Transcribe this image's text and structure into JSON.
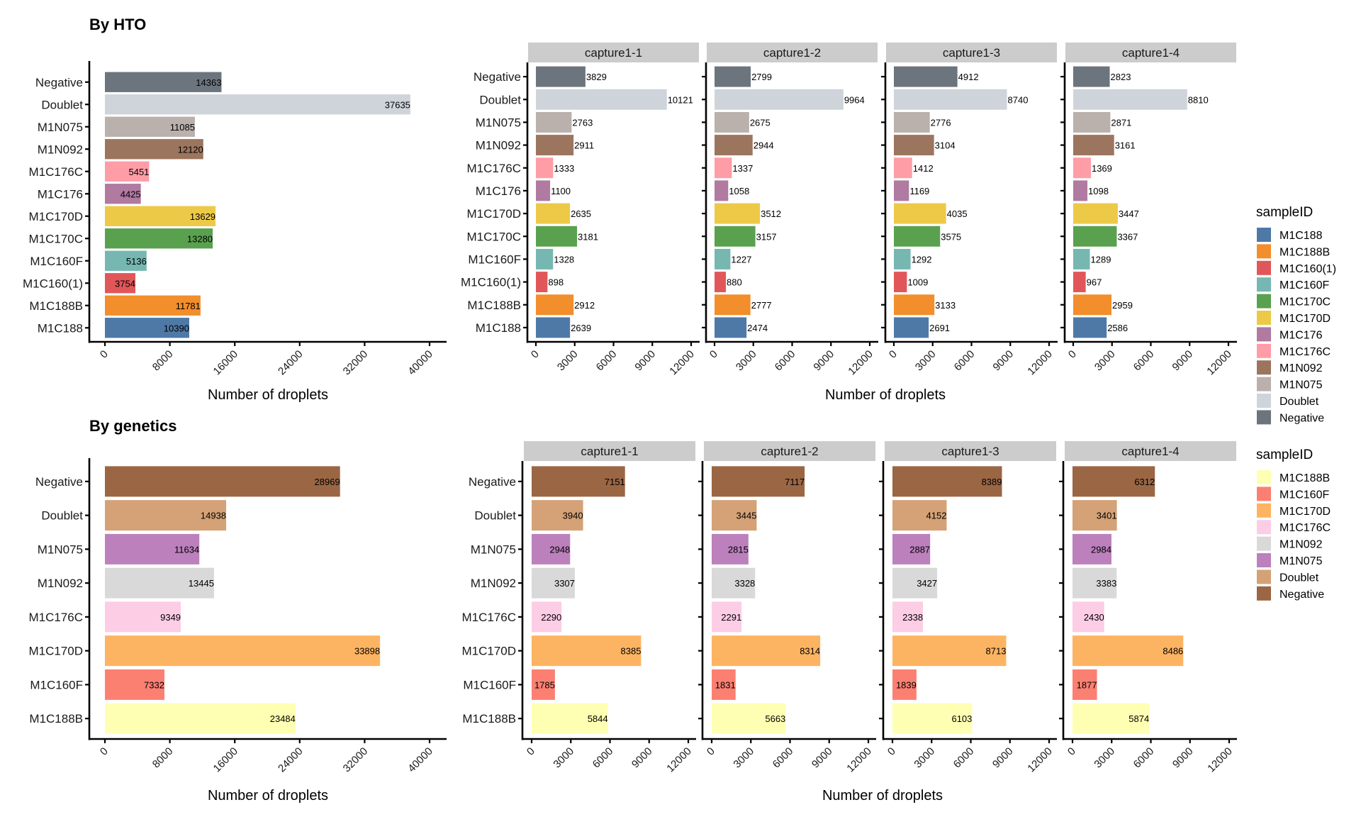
{
  "chart_data": [
    {
      "id": "hto_total",
      "type": "bar",
      "orientation": "horizontal",
      "section_title": "By HTO",
      "xlabel": "Number of droplets",
      "ylabel": "",
      "xlim": [
        0,
        40000
      ],
      "xticks": [
        0,
        8000,
        16000,
        24000,
        32000,
        40000
      ],
      "xtick_labels": [
        "0",
        "8000",
        "16000",
        "24000",
        "32000",
        "40000"
      ],
      "categories": [
        "Negative",
        "Doublet",
        "M1N075",
        "M1N092",
        "M1C176C",
        "M1C176",
        "M1C170D",
        "M1C170C",
        "M1C160F",
        "M1C160(1)",
        "M1C188B",
        "M1C188"
      ],
      "values": [
        14363,
        37635,
        11085,
        12120,
        5451,
        4425,
        13629,
        13280,
        5136,
        3754,
        11781,
        10390
      ],
      "label_position": "inside-end",
      "grid": false
    },
    {
      "id": "hto_by_capture",
      "type": "bar",
      "orientation": "horizontal",
      "faceted": true,
      "xlabel": "Number of droplets",
      "xlim": [
        0,
        12000
      ],
      "xticks": [
        0,
        3000,
        6000,
        9000,
        12000
      ],
      "xtick_labels": [
        "0",
        "3000",
        "6000",
        "9000",
        "12000"
      ],
      "categories": [
        "Negative",
        "Doublet",
        "M1N075",
        "M1N092",
        "M1C176C",
        "M1C176",
        "M1C170D",
        "M1C170C",
        "M1C160F",
        "M1C160(1)",
        "M1C188B",
        "M1C188"
      ],
      "facets": [
        {
          "name": "capture1-1",
          "values": [
            3829,
            10121,
            2763,
            2911,
            1333,
            1100,
            2635,
            3181,
            1328,
            898,
            2912,
            2639
          ]
        },
        {
          "name": "capture1-2",
          "values": [
            2799,
            9964,
            2675,
            2944,
            1337,
            1058,
            3512,
            3157,
            1227,
            880,
            2777,
            2474
          ]
        },
        {
          "name": "capture1-3",
          "values": [
            4912,
            8740,
            2776,
            3104,
            1412,
            1169,
            4035,
            3575,
            1292,
            1009,
            3133,
            2691
          ]
        },
        {
          "name": "capture1-4",
          "values": [
            2823,
            8810,
            2871,
            3161,
            1369,
            1098,
            3447,
            3367,
            1289,
            967,
            2959,
            2586
          ]
        }
      ],
      "label_position": "outside-end",
      "grid": false,
      "legend": {
        "title": "sampleID",
        "position": "right",
        "entries": [
          {
            "label": "M1C188",
            "color": "#4E79A7"
          },
          {
            "label": "M1C188B",
            "color": "#F28E2B"
          },
          {
            "label": "M1C160(1)",
            "color": "#E15759"
          },
          {
            "label": "M1C160F",
            "color": "#76B7B2"
          },
          {
            "label": "M1C170C",
            "color": "#59A14F"
          },
          {
            "label": "M1C170D",
            "color": "#EDC948"
          },
          {
            "label": "M1C176",
            "color": "#B07AA1"
          },
          {
            "label": "M1C176C",
            "color": "#FF9DA7"
          },
          {
            "label": "M1N092",
            "color": "#9C755F"
          },
          {
            "label": "M1N075",
            "color": "#BAB0AC"
          },
          {
            "label": "Doublet",
            "color": "#CFD4DB"
          },
          {
            "label": "Negative",
            "color": "#6C757D"
          }
        ]
      }
    },
    {
      "id": "genetics_total",
      "type": "bar",
      "orientation": "horizontal",
      "section_title": "By genetics",
      "xlabel": "Number of droplets",
      "xlim": [
        0,
        40000
      ],
      "xticks": [
        0,
        8000,
        16000,
        24000,
        32000,
        40000
      ],
      "xtick_labels": [
        "0",
        "8000",
        "16000",
        "24000",
        "32000",
        "40000"
      ],
      "categories": [
        "Negative",
        "Doublet",
        "M1N075",
        "M1N092",
        "M1C176C",
        "M1C170D",
        "M1C160F",
        "M1C188B"
      ],
      "values": [
        28969,
        14938,
        11634,
        13445,
        9349,
        33898,
        7332,
        23484
      ],
      "label_position": "inside-end",
      "grid": false
    },
    {
      "id": "genetics_by_capture",
      "type": "bar",
      "orientation": "horizontal",
      "faceted": true,
      "xlabel": "Number of droplets",
      "xlim": [
        0,
        12000
      ],
      "xticks": [
        0,
        3000,
        6000,
        9000,
        12000
      ],
      "xtick_labels": [
        "0",
        "3000",
        "6000",
        "9000",
        "12000"
      ],
      "categories": [
        "Negative",
        "Doublet",
        "M1N075",
        "M1N092",
        "M1C176C",
        "M1C170D",
        "M1C160F",
        "M1C188B"
      ],
      "facets": [
        {
          "name": "capture1-1",
          "values": [
            7151,
            3940,
            2948,
            3307,
            2290,
            8385,
            1785,
            5844
          ]
        },
        {
          "name": "capture1-2",
          "values": [
            7117,
            3445,
            2815,
            3328,
            2291,
            8314,
            1831,
            5663
          ]
        },
        {
          "name": "capture1-3",
          "values": [
            8389,
            4152,
            2887,
            3427,
            2338,
            8713,
            1839,
            6103
          ]
        },
        {
          "name": "capture1-4",
          "values": [
            6312,
            3401,
            2984,
            3383,
            2430,
            8486,
            1877,
            5874
          ]
        }
      ],
      "label_position": "inside-end",
      "grid": false,
      "legend": {
        "title": "sampleID",
        "position": "right",
        "entries": [
          {
            "label": "M1C188B",
            "color": "#FFFFB3"
          },
          {
            "label": "M1C160F",
            "color": "#FB8072"
          },
          {
            "label": "M1C170D",
            "color": "#FDB462"
          },
          {
            "label": "M1C176C",
            "color": "#FCCDE5"
          },
          {
            "label": "M1N092",
            "color": "#D9D9D9"
          },
          {
            "label": "M1N075",
            "color": "#BC80BD"
          },
          {
            "label": "Doublet",
            "color": "#D4A276"
          },
          {
            "label": "Negative",
            "color": "#9A6644"
          }
        ]
      }
    }
  ],
  "colors": {
    "strip_bg": "#CCCCCC",
    "axis": "#000000"
  }
}
